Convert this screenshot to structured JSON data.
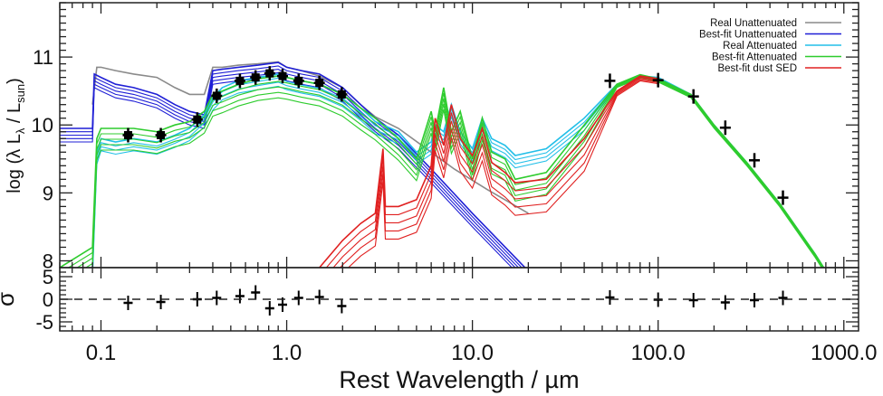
{
  "chart_data": {
    "type": "line",
    "title": "",
    "xlabel": "Rest Wavelength / µm",
    "ylabel_main": "log (λ Lλ / Lsun)",
    "ylabel_parts": {
      "pre": "log (λ L",
      "sub1": "λ",
      "mid": " / L",
      "sub2": "sun",
      "post": ")"
    },
    "ylabel_residual": "σ",
    "xscale": "log",
    "xlim": [
      0.06,
      1200
    ],
    "ylim_main": [
      7.9,
      11.8
    ],
    "ylim_residual": [
      -7,
      7
    ],
    "x_ticks": [
      {
        "value": 0.1,
        "label": "0.1"
      },
      {
        "value": 1.0,
        "label": "1.0"
      },
      {
        "value": 10.0,
        "label": "10.0"
      },
      {
        "value": 100.0,
        "label": "100.0"
      },
      {
        "value": 1000.0,
        "label": "1000.0"
      }
    ],
    "y_ticks_main": [
      {
        "value": 8,
        "label": "8"
      },
      {
        "value": 9,
        "label": "9"
      },
      {
        "value": 10,
        "label": "10"
      },
      {
        "value": 11,
        "label": "11"
      }
    ],
    "y_ticks_residual": [
      {
        "value": 5,
        "label": "5"
      },
      {
        "value": 0,
        "label": "0"
      },
      {
        "value": -5,
        "label": "-5"
      }
    ],
    "legend": {
      "placement": "top-right",
      "entries": [
        {
          "label": "Real Unattenuated",
          "color": "#8a8a8a"
        },
        {
          "label": "Best-fit Unattenuated",
          "color": "#1f1fd6"
        },
        {
          "label": "Real Attenuated",
          "color": "#22bfe8"
        },
        {
          "label": "Best-fit Attenuated",
          "color": "#2ecc2e"
        },
        {
          "label": "Best-fit dust SED",
          "color": "#e02020"
        }
      ]
    },
    "series": [
      {
        "name": "Real Unattenuated",
        "color": "#8a8a8a",
        "x": [
          0.09,
          0.095,
          0.1,
          0.12,
          0.15,
          0.2,
          0.25,
          0.3,
          0.36,
          0.4,
          0.45,
          0.55,
          0.7,
          0.9,
          1.0,
          1.2,
          1.5,
          2.0,
          2.5,
          3.0,
          4.0,
          6.0,
          8.0,
          12.0,
          20.0
        ],
        "y": [
          10.3,
          10.85,
          10.85,
          10.8,
          10.75,
          10.7,
          10.55,
          10.45,
          10.45,
          10.85,
          10.85,
          10.88,
          10.9,
          10.93,
          10.85,
          10.8,
          10.72,
          10.55,
          10.3,
          10.12,
          9.95,
          9.6,
          9.35,
          9.05,
          8.7
        ]
      },
      {
        "name": "Best-fit Unattenuated",
        "color": "#1f1fd6",
        "x": [
          0.06,
          0.09,
          0.092,
          0.1,
          0.12,
          0.15,
          0.2,
          0.25,
          0.3,
          0.36,
          0.4,
          0.45,
          0.55,
          0.7,
          0.9,
          1.0,
          1.2,
          1.5,
          2.0,
          2.5,
          3.0,
          4.0,
          6.0,
          10.0,
          20.0
        ],
        "y": [
          9.95,
          9.95,
          10.75,
          10.7,
          10.6,
          10.55,
          10.45,
          10.3,
          10.2,
          10.15,
          10.8,
          10.82,
          10.85,
          10.88,
          10.92,
          10.85,
          10.8,
          10.75,
          10.55,
          10.3,
          10.1,
          9.85,
          9.35,
          8.7,
          7.85
        ]
      },
      {
        "name": "Real Attenuated",
        "color": "#22bfe8",
        "x": [
          0.09,
          0.095,
          0.1,
          0.12,
          0.15,
          0.2,
          0.25,
          0.3,
          0.36,
          0.4,
          0.45,
          0.55,
          0.7,
          0.9,
          1.0,
          1.2,
          1.5,
          2.0,
          2.5,
          3.0,
          4.0,
          5.0,
          6.0,
          6.3,
          7.0,
          7.7,
          8.6,
          10.0,
          11.3,
          12.7,
          15.0,
          17.0,
          25.0,
          40.0,
          60.0,
          80.0,
          100.0,
          150.0,
          200.0,
          300.0,
          450.0,
          700.0,
          800.0
        ],
        "y": [
          7.9,
          9.6,
          9.8,
          9.75,
          9.8,
          9.75,
          9.85,
          9.95,
          10.15,
          10.4,
          10.55,
          10.65,
          10.7,
          10.75,
          10.7,
          10.65,
          10.6,
          10.45,
          10.25,
          10.05,
          9.9,
          9.6,
          9.75,
          10.0,
          9.9,
          10.3,
          9.9,
          9.65,
          10.1,
          9.8,
          9.7,
          9.55,
          9.65,
          10.1,
          10.6,
          10.72,
          10.7,
          10.45,
          10.0,
          9.45,
          8.85,
          8.1,
          7.85
        ]
      },
      {
        "name": "Best-fit Attenuated",
        "color": "#2ecc2e",
        "x": [
          0.06,
          0.09,
          0.095,
          0.1,
          0.12,
          0.15,
          0.2,
          0.25,
          0.3,
          0.36,
          0.4,
          0.45,
          0.55,
          0.7,
          0.9,
          1.0,
          1.2,
          1.5,
          2.0,
          2.5,
          3.0,
          4.0,
          5.0,
          6.0,
          6.3,
          7.0,
          7.7,
          8.6,
          10.0,
          11.3,
          12.7,
          15.0,
          17.0,
          25.0,
          40.0,
          60.0,
          80.0,
          100.0,
          150.0,
          200.0,
          300.0,
          450.0,
          700.0,
          800.0
        ],
        "y": [
          7.9,
          8.2,
          9.8,
          9.95,
          9.95,
          9.95,
          9.9,
          10.0,
          10.05,
          10.2,
          10.45,
          10.5,
          10.6,
          10.68,
          10.72,
          10.7,
          10.65,
          10.6,
          10.45,
          10.25,
          10.1,
          9.8,
          9.5,
          10.2,
          9.9,
          10.55,
          9.9,
          10.2,
          9.5,
          10.1,
          9.6,
          9.5,
          9.2,
          9.3,
          10.0,
          10.6,
          10.74,
          10.68,
          10.45,
          10.0,
          9.45,
          8.85,
          8.1,
          7.85
        ]
      },
      {
        "name": "Best-fit dust SED",
        "color": "#e02020",
        "x": [
          1.5,
          2.0,
          2.5,
          3.0,
          3.3,
          3.4,
          4.0,
          5.0,
          6.0,
          6.3,
          7.0,
          7.7,
          8.6,
          10.0,
          11.3,
          12.7,
          15.0,
          17.0,
          25.0,
          40.0,
          60.0,
          80.0,
          100.0
        ],
        "y": [
          7.9,
          8.3,
          8.55,
          8.7,
          9.65,
          8.8,
          8.8,
          8.9,
          9.4,
          10.1,
          9.7,
          10.3,
          9.8,
          9.55,
          9.95,
          9.45,
          9.3,
          9.15,
          9.2,
          9.8,
          10.5,
          10.72,
          10.68
        ]
      }
    ],
    "photometry": {
      "x": [
        0.14,
        0.21,
        0.33,
        0.42,
        0.56,
        0.68,
        0.81,
        0.95,
        1.16,
        1.5,
        1.98,
        55.0,
        100.0,
        155.0,
        230.0,
        330.0,
        470.0
      ],
      "y": [
        9.85,
        9.85,
        10.08,
        10.43,
        10.65,
        10.7,
        10.76,
        10.72,
        10.65,
        10.62,
        10.45,
        10.65,
        10.66,
        10.42,
        9.96,
        9.48,
        8.93
      ]
    },
    "residuals": {
      "x": [
        0.14,
        0.21,
        0.33,
        0.42,
        0.56,
        0.68,
        0.81,
        0.95,
        1.16,
        1.5,
        1.98,
        55.0,
        100.0,
        155.0,
        230.0,
        330.0,
        470.0
      ],
      "y": [
        -0.8,
        -0.6,
        0.0,
        0.3,
        0.7,
        1.5,
        -2.0,
        -1.2,
        0.3,
        0.5,
        -1.5,
        0.4,
        -0.1,
        -0.2,
        -0.7,
        -0.2,
        0.3
      ]
    }
  }
}
